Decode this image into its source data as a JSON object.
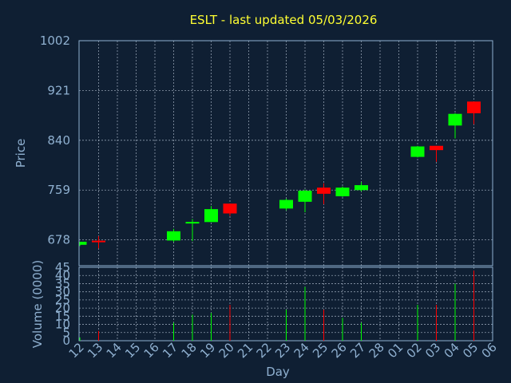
{
  "chart_data": {
    "type": "candlestick",
    "title": "ESLT - last updated 05/03/2026",
    "xlabel": "Day",
    "ylabel_price": "Price",
    "ylabel_volume": "Volume (0000)",
    "x_ticks": [
      "12",
      "13",
      "14",
      "15",
      "16",
      "17",
      "18",
      "19",
      "20",
      "21",
      "22",
      "23",
      "24",
      "25",
      "26",
      "27",
      "28",
      "01",
      "02",
      "03",
      "04",
      "05",
      "06"
    ],
    "price_ticks": [
      678,
      759,
      840,
      921,
      1002
    ],
    "volume_ticks": [
      0,
      5,
      10,
      15,
      20,
      25,
      30,
      35,
      40,
      45
    ],
    "price_range": [
      636,
      1002
    ],
    "volume_range": [
      0,
      45
    ],
    "grid": true,
    "up_color": "#00ff00",
    "down_color": "#ff0000",
    "candles": [
      {
        "day": "12",
        "open": 670,
        "high": 675,
        "low": 668,
        "close": 675,
        "volume": 2
      },
      {
        "day": "13",
        "open": 676,
        "high": 684,
        "low": 664,
        "close": 675,
        "volume": 6
      },
      {
        "day": "17",
        "open": 677,
        "high": 696,
        "low": 675,
        "close": 692,
        "volume": 11
      },
      {
        "day": "18",
        "open": 706,
        "high": 712,
        "low": 676,
        "close": 706,
        "volume": 16
      },
      {
        "day": "19",
        "open": 707,
        "high": 733,
        "low": 707,
        "close": 728,
        "volume": 17
      },
      {
        "day": "20",
        "open": 737,
        "high": 737,
        "low": 717,
        "close": 721,
        "volume": 22
      },
      {
        "day": "23",
        "open": 729,
        "high": 745,
        "low": 726,
        "close": 743,
        "volume": 19
      },
      {
        "day": "24",
        "open": 740,
        "high": 760,
        "low": 723,
        "close": 758,
        "volume": 33
      },
      {
        "day": "25",
        "open": 763,
        "high": 770,
        "low": 736,
        "close": 753,
        "volume": 19
      },
      {
        "day": "26",
        "open": 749,
        "high": 765,
        "low": 748,
        "close": 763,
        "volume": 14
      },
      {
        "day": "27",
        "open": 759,
        "high": 772,
        "low": 757,
        "close": 767,
        "volume": 11
      },
      {
        "day": "02",
        "open": 813,
        "high": 831,
        "low": 812,
        "close": 830,
        "volume": 22
      },
      {
        "day": "03",
        "open": 831,
        "high": 831,
        "low": 805,
        "close": 824,
        "volume": 22
      },
      {
        "day": "04",
        "open": 864,
        "high": 884,
        "low": 843,
        "close": 883,
        "volume": 35
      },
      {
        "day": "05",
        "open": 903,
        "high": 903,
        "low": 866,
        "close": 884,
        "volume": 43
      }
    ]
  }
}
